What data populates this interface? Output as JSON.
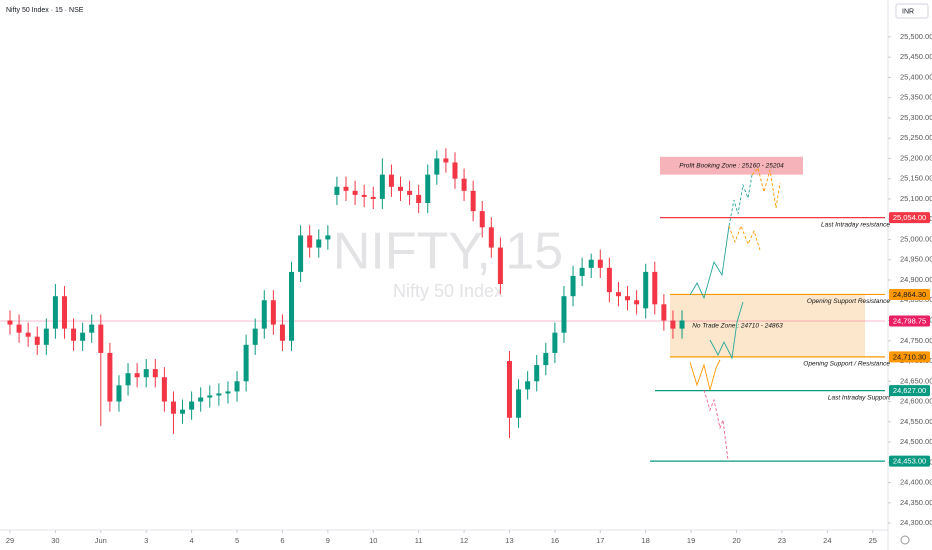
{
  "chart_data": {
    "type": "candlestick",
    "title": "Nifty 50 Index · 15 · NSE",
    "currency": "INR",
    "watermark": "NIFTY, 15",
    "watermark_subtitle": "Nifty 50 Index",
    "up_color": "#089981",
    "down_color": "#f23645",
    "grid": false,
    "xlim": [
      -0.22,
      19.27
    ],
    "ylim": [
      24283,
      25591
    ],
    "xticks": [
      {
        "value": 0,
        "label": "29"
      },
      {
        "value": 1,
        "label": "30"
      },
      {
        "value": 2,
        "label": "Jun"
      },
      {
        "value": 3,
        "label": "3"
      },
      {
        "value": 4,
        "label": "4"
      },
      {
        "value": 5,
        "label": "5"
      },
      {
        "value": 6,
        "label": "6"
      },
      {
        "value": 7,
        "label": "9"
      },
      {
        "value": 8,
        "label": "10"
      },
      {
        "value": 9,
        "label": "11"
      },
      {
        "value": 10,
        "label": "12"
      },
      {
        "value": 11,
        "label": "13"
      },
      {
        "value": 12,
        "label": "16"
      },
      {
        "value": 13,
        "label": "17"
      },
      {
        "value": 14,
        "label": "18"
      },
      {
        "value": 15,
        "label": "19"
      },
      {
        "value": 16,
        "label": "20"
      },
      {
        "value": 17,
        "label": "23"
      },
      {
        "value": 18,
        "label": "24"
      },
      {
        "value": 19,
        "label": "25"
      }
    ],
    "yticks": [
      {
        "value": 24300,
        "label": "24,300.00"
      },
      {
        "value": 24350,
        "label": "24,350.00"
      },
      {
        "value": 24400,
        "label": "24,400.00"
      },
      {
        "value": 24450,
        "label": "24,450.00"
      },
      {
        "value": 24500,
        "label": "24,500.00"
      },
      {
        "value": 24550,
        "label": "24,550.00"
      },
      {
        "value": 24600,
        "label": "24,600.00"
      },
      {
        "value": 24650,
        "label": "24,650.00"
      },
      {
        "value": 24700,
        "label": "24,700.00"
      },
      {
        "value": 24750,
        "label": "24,750.00"
      },
      {
        "value": 24800,
        "label": "24,800.00"
      },
      {
        "value": 24850,
        "label": "24,850.00"
      },
      {
        "value": 24900,
        "label": "24,900.00"
      },
      {
        "value": 24950,
        "label": "24,950.00"
      },
      {
        "value": 25000,
        "label": "25,000.00"
      },
      {
        "value": 25050,
        "label": "25,050.00"
      },
      {
        "value": 25100,
        "label": "25,100.00"
      },
      {
        "value": 25150,
        "label": "25,150.00"
      },
      {
        "value": 25200,
        "label": "25,200.00"
      },
      {
        "value": 25250,
        "label": "25,250.00"
      },
      {
        "value": 25300,
        "label": "25,300.00"
      },
      {
        "value": 25350,
        "label": "25,350.00"
      },
      {
        "value": 25400,
        "label": "25,400.00"
      },
      {
        "value": 25450,
        "label": "25,450.00"
      },
      {
        "value": 25500,
        "label": "25,500.00"
      }
    ],
    "candles": {
      "x": [
        0,
        0.2,
        0.4,
        0.6,
        0.8,
        1,
        1.2,
        1.4,
        1.6,
        1.8,
        2,
        2.2,
        2.4,
        2.6,
        2.8,
        3,
        3.2,
        3.4,
        3.6,
        3.8,
        4,
        4.2,
        4.4,
        4.6,
        4.8,
        5,
        5.2,
        5.4,
        5.6,
        5.8,
        6,
        6.2,
        6.4,
        6.6,
        6.8,
        7,
        7.2,
        7.4,
        7.6,
        7.8,
        8,
        8.2,
        8.4,
        8.6,
        8.8,
        9,
        9.2,
        9.4,
        9.6,
        9.8,
        10,
        10.2,
        10.4,
        10.6,
        10.8,
        11,
        11.2,
        11.4,
        11.6,
        11.8,
        12,
        12.2,
        12.4,
        12.6,
        12.8,
        13,
        13.2,
        13.4,
        13.6,
        13.8,
        14,
        14.2,
        14.4,
        14.6,
        14.8
      ],
      "open": [
        24800,
        24790,
        24770,
        24760,
        24740,
        24780,
        24860,
        24780,
        24750,
        24770,
        24790,
        24720,
        24600,
        24640,
        24670,
        24660,
        24680,
        24660,
        24600,
        24570,
        24580,
        24600,
        24610,
        24615,
        24620,
        24625,
        24650,
        24740,
        24780,
        24850,
        24790,
        24750,
        24920,
        25010,
        24980,
        25000,
        25110,
        25130,
        25120,
        25110,
        25105,
        25100,
        25160,
        25130,
        25120,
        25110,
        25090,
        25160,
        25200,
        25190,
        25150,
        25120,
        25070,
        25030,
        24980,
        24700,
        24560,
        24630,
        24650,
        24690,
        24720,
        24770,
        24860,
        24910,
        24930,
        24950,
        24930,
        24870,
        24860,
        24850,
        24830,
        24920,
        24840,
        24800,
        24780
      ],
      "high": [
        24825,
        24815,
        24795,
        24785,
        24805,
        24890,
        24885,
        24805,
        24795,
        24815,
        24815,
        24745,
        24665,
        24695,
        24695,
        24705,
        24705,
        24685,
        24625,
        24605,
        24625,
        24635,
        24640,
        24645,
        24650,
        24675,
        24765,
        24805,
        24875,
        24875,
        24815,
        24945,
        25035,
        25035,
        25025,
        25035,
        25155,
        25155,
        25145,
        25135,
        25130,
        25200,
        25185,
        25155,
        25145,
        25135,
        25185,
        25220,
        25225,
        25215,
        25175,
        25145,
        25095,
        25055,
        25005,
        24725,
        24655,
        24675,
        24715,
        24745,
        24795,
        24885,
        24935,
        24955,
        24965,
        24975,
        24955,
        24895,
        24885,
        24875,
        24940,
        24945,
        24865,
        24825,
        24825
      ],
      "low": [
        24765,
        24745,
        24735,
        24715,
        24715,
        24755,
        24755,
        24725,
        24725,
        24745,
        24540,
        24575,
        24575,
        24615,
        24635,
        24635,
        24635,
        24575,
        24520,
        24545,
        24555,
        24575,
        24585,
        24590,
        24595,
        24600,
        24625,
        24715,
        24755,
        24765,
        24725,
        24725,
        24895,
        24955,
        24955,
        24975,
        25085,
        25095,
        25085,
        25080,
        25075,
        25075,
        25105,
        25095,
        25085,
        25065,
        25065,
        25135,
        25165,
        25125,
        25095,
        25045,
        25005,
        24955,
        24865,
        24510,
        24535,
        24605,
        24625,
        24665,
        24695,
        24745,
        24835,
        24885,
        24905,
        24905,
        24845,
        24835,
        24825,
        24815,
        24805,
        24815,
        24775,
        24755,
        24755
      ],
      "close": [
        24790,
        24770,
        24760,
        24740,
        24780,
        24860,
        24780,
        24750,
        24770,
        24790,
        24720,
        24600,
        24640,
        24670,
        24660,
        24680,
        24660,
        24600,
        24570,
        24580,
        24600,
        24610,
        24615,
        24620,
        24625,
        24650,
        24740,
        24780,
        24850,
        24790,
        24750,
        24920,
        25010,
        24980,
        25000,
        25010,
        25130,
        25120,
        25110,
        25105,
        25100,
        25160,
        25130,
        25120,
        25110,
        25090,
        25160,
        25200,
        25190,
        25150,
        25120,
        25070,
        25030,
        24980,
        24890,
        24560,
        24630,
        24650,
        24690,
        24720,
        24770,
        24860,
        24910,
        24930,
        24950,
        24930,
        24870,
        24860,
        24850,
        24840,
        24920,
        24840,
        24800,
        24780,
        24800
      ]
    },
    "current_price": {
      "value": 24798.75,
      "label": "24,798.75",
      "color": "#e91e63"
    },
    "zones": [
      {
        "text": "Profit Booking Zone : 25160 - 25204",
        "low": 25160,
        "high": 25204,
        "color": "#f4a7ae"
      },
      {
        "text": "No Trade Zone : 24710 - 24863",
        "low": 24710,
        "high": 24863,
        "color": "#fbe3c4"
      }
    ],
    "levels": [
      {
        "value": 25054,
        "label": "25,054.00",
        "text": "Last Intraday resistance",
        "color": "#f23645"
      },
      {
        "value": 24864.3,
        "label": "24,864.30",
        "text": "Opening Support Resistance",
        "color": "#ff9800"
      },
      {
        "value": 24710.3,
        "label": "24,710.30",
        "text": "Opening Support / Resistance",
        "color": "#ff9800"
      },
      {
        "value": 24627,
        "label": "24,627.00",
        "text": "Last Intraday Support",
        "color": "#089981"
      },
      {
        "value": 24453,
        "label": "24,453.00",
        "color": "#089981"
      }
    ]
  }
}
